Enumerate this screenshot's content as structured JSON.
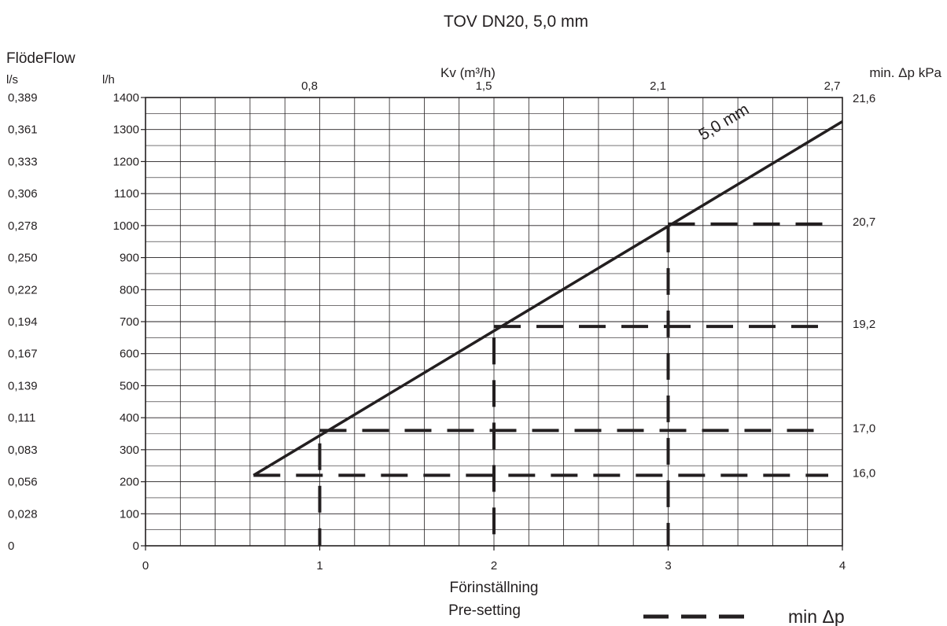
{
  "chart_data": {
    "type": "line",
    "title": "TOV DN20, 5,0 mm",
    "left_axis_title": "FlödeFlow",
    "unit_ls": "l/s",
    "unit_lh": "l/h",
    "top_axis_title": "Kv (m³/h)",
    "right_axis_title": "min. Δp kPa",
    "xlabel_line1": "Förinställning",
    "xlabel_line2": "Pre-setting",
    "x_ticks": [
      "0",
      "1",
      "2",
      "3",
      "4"
    ],
    "xlim": [
      0,
      4
    ],
    "y_ticks_lh": [
      "0",
      "100",
      "200",
      "300",
      "400",
      "500",
      "600",
      "700",
      "800",
      "900",
      "1000",
      "1100",
      "1200",
      "1300",
      "1400"
    ],
    "y_ticks_ls": [
      "0",
      "0,028",
      "0,056",
      "0,083",
      "0,111",
      "0,139",
      "0,167",
      "0,194",
      "0,222",
      "0,250",
      "0,278",
      "0,306",
      "0,333",
      "0,361",
      "0,389"
    ],
    "ylim": [
      0,
      1400
    ],
    "kv_ticks": [
      {
        "x": 1,
        "label": "0,8"
      },
      {
        "x": 2,
        "label": "1,5"
      },
      {
        "x": 3,
        "label": "2,1"
      },
      {
        "x": 4,
        "label": "2,7"
      }
    ],
    "series": [
      {
        "name": "5,0 mm",
        "style": "solid",
        "x": [
          0.62,
          4.0
        ],
        "y": [
          220,
          1325
        ]
      }
    ],
    "dashed_min_dp": {
      "horizontal": [
        {
          "y": 220,
          "x_from": 0.62,
          "x_to": 4.0,
          "dp_label": "16,0"
        },
        {
          "y": 360,
          "x_from": 1.0,
          "x_to": 4.0,
          "dp_label": "17,0"
        },
        {
          "y": 685,
          "x_from": 2.0,
          "x_to": 4.0,
          "dp_label": "19,2"
        },
        {
          "y": 1005,
          "x_from": 3.0,
          "x_to": 4.0,
          "dp_label": "20,7"
        }
      ],
      "vertical": [
        {
          "x": 1,
          "y_from": 0,
          "y_to": 320
        },
        {
          "x": 2,
          "y_from": 0,
          "y_to": 650
        },
        {
          "x": 3,
          "y_from": 0,
          "y_to": 1000
        }
      ]
    },
    "right_top_label": "21,6",
    "legend": {
      "label": "min Δp",
      "style": "dashed",
      "position": "bottom-right"
    },
    "grid": true,
    "colors": {
      "line": "#231f20",
      "grid": "#231f20",
      "background": "#ffffff"
    }
  }
}
